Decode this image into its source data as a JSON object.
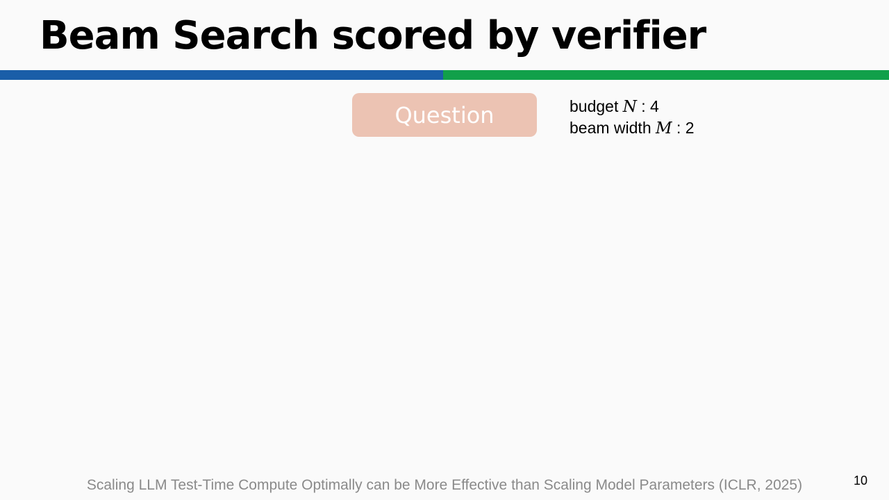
{
  "slide": {
    "title": "Beam Search scored by verifier",
    "colors": {
      "bar_left": "#1a5ea8",
      "bar_right": "#11a04a",
      "question_box": "#ecc3b3",
      "citation_text": "#8a8a8a"
    },
    "question": {
      "label": "Question"
    },
    "params": {
      "budget": {
        "label": "budget",
        "variable": "N",
        "separator": ":",
        "value": "4"
      },
      "beam_width": {
        "label": "beam width",
        "variable": "M",
        "separator": ":",
        "value": "2"
      }
    },
    "citation": "Scaling LLM Test-Time Compute Optimally can be More Effective than Scaling Model Parameters (ICLR, 2025)",
    "page_number": "10"
  }
}
